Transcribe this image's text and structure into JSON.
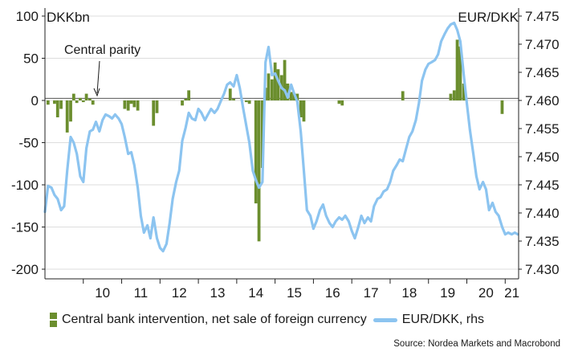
{
  "chart_data": {
    "type": "bar+line",
    "left_axis_label": "DKKbn",
    "right_axis_label": "EUR/DKK",
    "left_ylim": [
      -200,
      100
    ],
    "left_ticks": [
      100,
      50,
      0,
      -50,
      -100,
      -150,
      -200
    ],
    "right_ylim": [
      7.43,
      7.475
    ],
    "right_ticks": [
      "7.475",
      "7.470",
      "7.465",
      "7.460",
      "7.455",
      "7.450",
      "7.445",
      "7.440",
      "7.435",
      "7.430"
    ],
    "x_tick_labels": [
      "10",
      "11",
      "12",
      "13",
      "14",
      "15",
      "16",
      "17",
      "18",
      "19",
      "20",
      "21"
    ],
    "x_range": [
      2009.0,
      2021.35
    ],
    "annotation": "Central parity",
    "central_parity": 7.46038,
    "grid": "horizontal",
    "series": [
      {
        "name": "Central bank intervention, net sale of foreign currency",
        "type": "bar",
        "axis": "left",
        "color": "#6b8e2e",
        "points": [
          [
            2009.08,
            -5
          ],
          [
            2009.25,
            -4
          ],
          [
            2009.33,
            -20
          ],
          [
            2009.42,
            -10
          ],
          [
            2009.58,
            -38
          ],
          [
            2009.67,
            -25
          ],
          [
            2009.75,
            8
          ],
          [
            2009.83,
            -3
          ],
          [
            2009.92,
            3
          ],
          [
            2010.0,
            -2
          ],
          [
            2010.08,
            8
          ],
          [
            2010.17,
            2
          ],
          [
            2010.25,
            -5
          ],
          [
            2011.08,
            -10
          ],
          [
            2011.17,
            -12
          ],
          [
            2011.25,
            -4
          ],
          [
            2011.33,
            -8
          ],
          [
            2011.42,
            -12
          ],
          [
            2011.83,
            -30
          ],
          [
            2011.92,
            -15
          ],
          [
            2012.58,
            -6
          ],
          [
            2012.67,
            2
          ],
          [
            2012.75,
            12
          ],
          [
            2013.83,
            14
          ],
          [
            2013.92,
            2
          ],
          [
            2014.25,
            -2
          ],
          [
            2014.33,
            -4
          ],
          [
            2014.5,
            -122
          ],
          [
            2014.58,
            -167
          ],
          [
            2014.67,
            -80
          ],
          [
            2014.75,
            15
          ],
          [
            2014.83,
            32
          ],
          [
            2014.92,
            25
          ],
          [
            2015.0,
            45
          ],
          [
            2015.08,
            37
          ],
          [
            2015.17,
            30
          ],
          [
            2015.25,
            48
          ],
          [
            2015.33,
            20
          ],
          [
            2015.42,
            10
          ],
          [
            2015.5,
            8
          ],
          [
            2015.58,
            8
          ],
          [
            2015.67,
            -20
          ],
          [
            2015.75,
            -25
          ],
          [
            2016.67,
            -4
          ],
          [
            2016.75,
            -6
          ],
          [
            2018.33,
            11
          ],
          [
            2019.58,
            8
          ],
          [
            2019.67,
            12
          ],
          [
            2019.75,
            72
          ],
          [
            2019.83,
            64
          ],
          [
            2019.92,
            20
          ],
          [
            2020.92,
            -16
          ]
        ]
      },
      {
        "name": "EUR/DKK, rhs",
        "type": "line",
        "axis": "right",
        "color": "#8cc4f0",
        "points": [
          [
            2009.0,
            7.4402
          ],
          [
            2009.08,
            7.4448
          ],
          [
            2009.17,
            7.4445
          ],
          [
            2009.25,
            7.4432
          ],
          [
            2009.33,
            7.4425
          ],
          [
            2009.42,
            7.4405
          ],
          [
            2009.5,
            7.4412
          ],
          [
            2009.58,
            7.4475
          ],
          [
            2009.67,
            7.4535
          ],
          [
            2009.75,
            7.4525
          ],
          [
            2009.83,
            7.4505
          ],
          [
            2009.92,
            7.4465
          ],
          [
            2010.0,
            7.4455
          ],
          [
            2010.08,
            7.4515
          ],
          [
            2010.17,
            7.4545
          ],
          [
            2010.25,
            7.4548
          ],
          [
            2010.33,
            7.4562
          ],
          [
            2010.42,
            7.4545
          ],
          [
            2010.5,
            7.4565
          ],
          [
            2010.58,
            7.4575
          ],
          [
            2010.67,
            7.4572
          ],
          [
            2010.75,
            7.4568
          ],
          [
            2010.83,
            7.4575
          ],
          [
            2010.92,
            7.4568
          ],
          [
            2011.0,
            7.4558
          ],
          [
            2011.08,
            7.4535
          ],
          [
            2011.17,
            7.4505
          ],
          [
            2011.25,
            7.4508
          ],
          [
            2011.33,
            7.4485
          ],
          [
            2011.42,
            7.4445
          ],
          [
            2011.5,
            7.4395
          ],
          [
            2011.58,
            7.4365
          ],
          [
            2011.67,
            7.4378
          ],
          [
            2011.75,
            7.4355
          ],
          [
            2011.83,
            7.4392
          ],
          [
            2011.92,
            7.4355
          ],
          [
            2012.0,
            7.4338
          ],
          [
            2012.08,
            7.4332
          ],
          [
            2012.17,
            7.4345
          ],
          [
            2012.25,
            7.4382
          ],
          [
            2012.33,
            7.4425
          ],
          [
            2012.42,
            7.4455
          ],
          [
            2012.5,
            7.4475
          ],
          [
            2012.58,
            7.4528
          ],
          [
            2012.67,
            7.4552
          ],
          [
            2012.75,
            7.4578
          ],
          [
            2012.83,
            7.4568
          ],
          [
            2012.92,
            7.4565
          ],
          [
            2013.0,
            7.4585
          ],
          [
            2013.08,
            7.4578
          ],
          [
            2013.17,
            7.4565
          ],
          [
            2013.25,
            7.4575
          ],
          [
            2013.33,
            7.4585
          ],
          [
            2013.42,
            7.4578
          ],
          [
            2013.5,
            7.4585
          ],
          [
            2013.58,
            7.4598
          ],
          [
            2013.67,
            7.4612
          ],
          [
            2013.75,
            7.4628
          ],
          [
            2013.83,
            7.4632
          ],
          [
            2013.92,
            7.4625
          ],
          [
            2014.0,
            7.4645
          ],
          [
            2014.08,
            7.4622
          ],
          [
            2014.17,
            7.4585
          ],
          [
            2014.25,
            7.4555
          ],
          [
            2014.33,
            7.4525
          ],
          [
            2014.42,
            7.4475
          ],
          [
            2014.5,
            7.4458
          ],
          [
            2014.58,
            7.4445
          ],
          [
            2014.67,
            7.4455
          ],
          [
            2014.75,
            7.4668
          ],
          [
            2014.83,
            7.4695
          ],
          [
            2014.92,
            7.4645
          ],
          [
            2015.0,
            7.4648
          ],
          [
            2015.08,
            7.4635
          ],
          [
            2015.17,
            7.4622
          ],
          [
            2015.25,
            7.4618
          ],
          [
            2015.33,
            7.4605
          ],
          [
            2015.42,
            7.4628
          ],
          [
            2015.5,
            7.4612
          ],
          [
            2015.58,
            7.4598
          ],
          [
            2015.67,
            7.4545
          ],
          [
            2015.75,
            7.4475
          ],
          [
            2015.83,
            7.4405
          ],
          [
            2015.92,
            7.4395
          ],
          [
            2016.0,
            7.4372
          ],
          [
            2016.08,
            7.4385
          ],
          [
            2016.17,
            7.4405
          ],
          [
            2016.25,
            7.4415
          ],
          [
            2016.33,
            7.4395
          ],
          [
            2016.42,
            7.4382
          ],
          [
            2016.5,
            7.4375
          ],
          [
            2016.58,
            7.4385
          ],
          [
            2016.67,
            7.4392
          ],
          [
            2016.75,
            7.4388
          ],
          [
            2016.83,
            7.4395
          ],
          [
            2016.92,
            7.4385
          ],
          [
            2017.0,
            7.4368
          ],
          [
            2017.08,
            7.4355
          ],
          [
            2017.17,
            7.4375
          ],
          [
            2017.25,
            7.4395
          ],
          [
            2017.33,
            7.4382
          ],
          [
            2017.42,
            7.4392
          ],
          [
            2017.5,
            7.4385
          ],
          [
            2017.58,
            7.4412
          ],
          [
            2017.67,
            7.4425
          ],
          [
            2017.75,
            7.4428
          ],
          [
            2017.83,
            7.4438
          ],
          [
            2017.92,
            7.4442
          ],
          [
            2018.0,
            7.4455
          ],
          [
            2018.08,
            7.4475
          ],
          [
            2018.17,
            7.4485
          ],
          [
            2018.25,
            7.4495
          ],
          [
            2018.33,
            7.4492
          ],
          [
            2018.42,
            7.4515
          ],
          [
            2018.5,
            7.4535
          ],
          [
            2018.58,
            7.4545
          ],
          [
            2018.67,
            7.4565
          ],
          [
            2018.75,
            7.4595
          ],
          [
            2018.83,
            7.4635
          ],
          [
            2018.92,
            7.4655
          ],
          [
            2019.0,
            7.4665
          ],
          [
            2019.08,
            7.4668
          ],
          [
            2019.17,
            7.4672
          ],
          [
            2019.25,
            7.4682
          ],
          [
            2019.33,
            7.4705
          ],
          [
            2019.42,
            7.4718
          ],
          [
            2019.5,
            7.4728
          ],
          [
            2019.58,
            7.4735
          ],
          [
            2019.67,
            7.4738
          ],
          [
            2019.75,
            7.4725
          ],
          [
            2019.83,
            7.4705
          ],
          [
            2019.92,
            7.4645
          ],
          [
            2020.0,
            7.4595
          ],
          [
            2020.08,
            7.4548
          ],
          [
            2020.17,
            7.4505
          ],
          [
            2020.25,
            7.4465
          ],
          [
            2020.33,
            7.4442
          ],
          [
            2020.42,
            7.4455
          ],
          [
            2020.5,
            7.4442
          ],
          [
            2020.58,
            7.4405
          ],
          [
            2020.67,
            7.4418
          ],
          [
            2020.75,
            7.4402
          ],
          [
            2020.83,
            7.4395
          ],
          [
            2020.92,
            7.4375
          ],
          [
            2021.0,
            7.4362
          ],
          [
            2021.08,
            7.4365
          ],
          [
            2021.17,
            7.4362
          ],
          [
            2021.25,
            7.4365
          ],
          [
            2021.33,
            7.4362
          ]
        ]
      }
    ]
  },
  "legend": {
    "bar_label": "Central bank intervention, net sale of foreign currency",
    "line_label": "EUR/DKK, rhs"
  },
  "source": "Source: Nordea Markets and Macrobond",
  "colors": {
    "bar": "#6b8e2e",
    "line": "#8cc4f0",
    "grid": "#dddddd",
    "axis": "#222222"
  }
}
